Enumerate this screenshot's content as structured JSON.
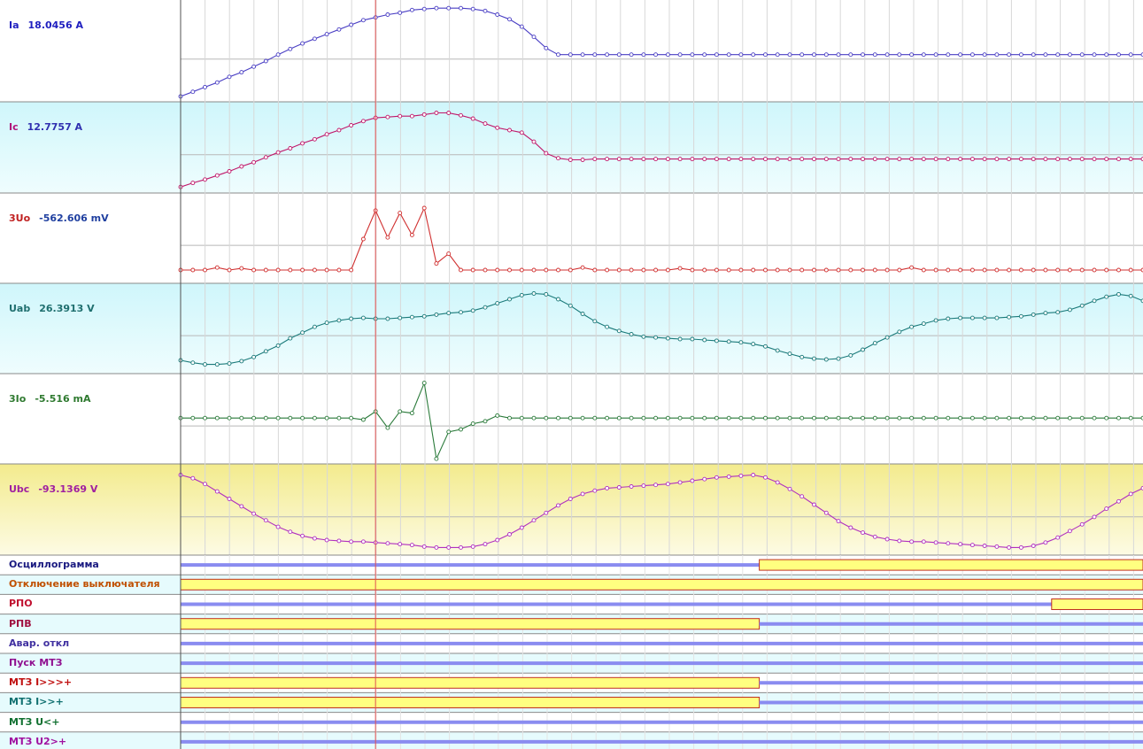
{
  "cursor_index": 16,
  "analog_channels": [
    {
      "name": "Ia",
      "readout": "18.0456 A",
      "color": "#2020c0",
      "line_color": "#4a3fc4",
      "bg": "white"
    },
    {
      "name": "Ic",
      "readout": "12.7757 A",
      "color": "#3030b0",
      "name_color": "#b0107a",
      "line_color": "#c0186a",
      "bg": "cyan"
    },
    {
      "name": "3Uo",
      "readout": "-562.606 mV",
      "color": "#2040a0",
      "name_color": "#c02020",
      "line_color": "#d03030",
      "bg": "white"
    },
    {
      "name": "Uab",
      "readout": "26.3913 V",
      "color": "#1f6f6f",
      "line_color": "#1a7a7a",
      "bg": "cyan"
    },
    {
      "name": "3Io",
      "readout": "-5.516  mA",
      "color": "#2f7a30",
      "line_color": "#2a7a3a",
      "bg": "white"
    },
    {
      "name": "Ubc",
      "readout": "-93.1369 V",
      "color": "#a020a0",
      "line_color": "#b030c0",
      "bg": "yellow"
    }
  ],
  "digital_channels": [
    {
      "name": "Осциллограмма",
      "color": "#1a1a80",
      "state": [
        0,
        0,
        0,
        0,
        0,
        0,
        0,
        0,
        0,
        0,
        0,
        0,
        0,
        0,
        0,
        0,
        0,
        0,
        0,
        0,
        0,
        0,
        0,
        0,
        0,
        0,
        0,
        0,
        0,
        0,
        0,
        0,
        0,
        0,
        0,
        0,
        0,
        0,
        0,
        0,
        0,
        0,
        0,
        0,
        0,
        0,
        0,
        0,
        1,
        1,
        1,
        1,
        1,
        1,
        1,
        1,
        1,
        1,
        1,
        1,
        1,
        1,
        1,
        1,
        1,
        1,
        1,
        1,
        1,
        1,
        1,
        1,
        1,
        1,
        1,
        1,
        1,
        1,
        1,
        1
      ]
    },
    {
      "name": "Отключение выключателя",
      "color": "#c05000",
      "state": [
        1,
        1,
        1,
        1,
        1,
        1,
        1,
        1,
        1,
        1,
        1,
        1,
        1,
        1,
        1,
        1,
        1,
        1,
        1,
        1,
        1,
        1,
        1,
        1,
        1,
        1,
        1,
        1,
        1,
        1,
        1,
        1,
        1,
        1,
        1,
        1,
        1,
        1,
        1,
        1,
        1,
        1,
        1,
        1,
        1,
        1,
        1,
        1,
        1,
        1,
        1,
        1,
        1,
        1,
        1,
        1,
        1,
        1,
        1,
        1,
        1,
        1,
        1,
        1,
        1,
        1,
        1,
        1,
        1,
        1,
        1,
        1,
        1,
        1,
        1,
        1,
        1,
        1,
        1,
        1
      ]
    },
    {
      "name": "РПО",
      "color": "#c01030",
      "state": [
        0,
        0,
        0,
        0,
        0,
        0,
        0,
        0,
        0,
        0,
        0,
        0,
        0,
        0,
        0,
        0,
        0,
        0,
        0,
        0,
        0,
        0,
        0,
        0,
        0,
        0,
        0,
        0,
        0,
        0,
        0,
        0,
        0,
        0,
        0,
        0,
        0,
        0,
        0,
        0,
        0,
        0,
        0,
        0,
        0,
        0,
        0,
        0,
        0,
        0,
        0,
        0,
        0,
        0,
        0,
        0,
        0,
        0,
        0,
        0,
        0,
        0,
        0,
        0,
        0,
        0,
        0,
        0,
        0,
        0,
        0,
        0,
        1,
        1,
        1,
        1,
        1,
        1,
        1,
        1
      ]
    },
    {
      "name": "РПВ",
      "color": "#a01040",
      "state": [
        1,
        1,
        1,
        1,
        1,
        1,
        1,
        1,
        1,
        1,
        1,
        1,
        1,
        1,
        1,
        1,
        1,
        1,
        1,
        1,
        1,
        1,
        1,
        1,
        1,
        1,
        1,
        1,
        1,
        1,
        1,
        1,
        1,
        1,
        1,
        1,
        1,
        1,
        1,
        1,
        1,
        1,
        1,
        1,
        1,
        1,
        1,
        1,
        0,
        0,
        0,
        0,
        0,
        0,
        0,
        0,
        0,
        0,
        0,
        0,
        0,
        0,
        0,
        0,
        0,
        0,
        0,
        0,
        0,
        0,
        0,
        0,
        0,
        0,
        0,
        0,
        0,
        0,
        0,
        0
      ]
    },
    {
      "name": "Авар. откл",
      "color": "#4030a0",
      "state": [
        0,
        0,
        0,
        0,
        0,
        0,
        0,
        0,
        0,
        0,
        0,
        0,
        0,
        0,
        0,
        0,
        0,
        0,
        0,
        0,
        0,
        0,
        0,
        0,
        0,
        0,
        0,
        0,
        0,
        0,
        0,
        0,
        0,
        0,
        0,
        0,
        0,
        0,
        0,
        0,
        0,
        0,
        0,
        0,
        0,
        0,
        0,
        0,
        0,
        0,
        0,
        0,
        0,
        0,
        0,
        0,
        0,
        0,
        0,
        0,
        0,
        0,
        0,
        0,
        0,
        0,
        0,
        0,
        0,
        0,
        0,
        0,
        0,
        0,
        0,
        0,
        0,
        0,
        0,
        0
      ]
    },
    {
      "name": "Пуск МТЗ",
      "color": "#901090",
      "state": [
        0,
        0,
        0,
        0,
        0,
        0,
        0,
        0,
        0,
        0,
        0,
        0,
        0,
        0,
        0,
        0,
        0,
        0,
        0,
        0,
        0,
        0,
        0,
        0,
        0,
        0,
        0,
        0,
        0,
        0,
        0,
        0,
        0,
        0,
        0,
        0,
        0,
        0,
        0,
        0,
        0,
        0,
        0,
        0,
        0,
        0,
        0,
        0,
        0,
        0,
        0,
        0,
        0,
        0,
        0,
        0,
        0,
        0,
        0,
        0,
        0,
        0,
        0,
        0,
        0,
        0,
        0,
        0,
        0,
        0,
        0,
        0,
        0,
        0,
        0,
        0,
        0,
        0,
        0,
        0
      ]
    },
    {
      "name": "МТЗ I>>>+",
      "color": "#c01010",
      "state": [
        1,
        1,
        1,
        1,
        1,
        1,
        1,
        1,
        1,
        1,
        1,
        1,
        1,
        1,
        1,
        1,
        1,
        1,
        1,
        1,
        1,
        1,
        1,
        1,
        1,
        1,
        1,
        1,
        1,
        1,
        1,
        1,
        1,
        1,
        1,
        1,
        1,
        1,
        1,
        1,
        1,
        1,
        1,
        1,
        1,
        1,
        1,
        1,
        0,
        0,
        0,
        0,
        0,
        0,
        0,
        0,
        0,
        0,
        0,
        0,
        0,
        0,
        0,
        0,
        0,
        0,
        0,
        0,
        0,
        0,
        0,
        0,
        0,
        0,
        0,
        0,
        0,
        0,
        0,
        0
      ]
    },
    {
      "name": "МТЗ I>>+",
      "color": "#107070",
      "state": [
        1,
        1,
        1,
        1,
        1,
        1,
        1,
        1,
        1,
        1,
        1,
        1,
        1,
        1,
        1,
        1,
        1,
        1,
        1,
        1,
        1,
        1,
        1,
        1,
        1,
        1,
        1,
        1,
        1,
        1,
        1,
        1,
        1,
        1,
        1,
        1,
        1,
        1,
        1,
        1,
        1,
        1,
        1,
        1,
        1,
        1,
        1,
        1,
        0,
        0,
        0,
        0,
        0,
        0,
        0,
        0,
        0,
        0,
        0,
        0,
        0,
        0,
        0,
        0,
        0,
        0,
        0,
        0,
        0,
        0,
        0,
        0,
        0,
        0,
        0,
        0,
        0,
        0,
        0,
        0
      ]
    },
    {
      "name": "МТЗ U<+",
      "color": "#107030",
      "state": [
        0,
        0,
        0,
        0,
        0,
        0,
        0,
        0,
        0,
        0,
        0,
        0,
        0,
        0,
        0,
        0,
        0,
        0,
        0,
        0,
        0,
        0,
        0,
        0,
        0,
        0,
        0,
        0,
        0,
        0,
        0,
        0,
        0,
        0,
        0,
        0,
        0,
        0,
        0,
        0,
        0,
        0,
        0,
        0,
        0,
        0,
        0,
        0,
        0,
        0,
        0,
        0,
        0,
        0,
        0,
        0,
        0,
        0,
        0,
        0,
        0,
        0,
        0,
        0,
        0,
        0,
        0,
        0,
        0,
        0,
        0,
        0,
        0,
        0,
        0,
        0,
        0,
        0,
        0,
        0
      ]
    },
    {
      "name": "МТЗ U2>+",
      "color": "#a010a0",
      "state": [
        0,
        0,
        0,
        0,
        0,
        0,
        0,
        0,
        0,
        0,
        0,
        0,
        0,
        0,
        0,
        0,
        0,
        0,
        0,
        0,
        0,
        0,
        0,
        0,
        0,
        0,
        0,
        0,
        0,
        0,
        0,
        0,
        0,
        0,
        0,
        0,
        0,
        0,
        0,
        0,
        0,
        0,
        0,
        0,
        0,
        0,
        0,
        0,
        0,
        0,
        0,
        0,
        0,
        0,
        0,
        0,
        0,
        0,
        0,
        0,
        0,
        0,
        0,
        0,
        0,
        0,
        0,
        0,
        0,
        0,
        0,
        0,
        0,
        0,
        0,
        0,
        0,
        0,
        0,
        0
      ]
    }
  ],
  "chart_data": {
    "type": "line",
    "title": "",
    "xlabel": "",
    "ylabel": "",
    "x_samples": 80,
    "grid": true,
    "series": [
      {
        "name": "Ia",
        "values": [
          0.02,
          0.07,
          0.12,
          0.17,
          0.23,
          0.28,
          0.34,
          0.4,
          0.47,
          0.53,
          0.59,
          0.64,
          0.69,
          0.74,
          0.79,
          0.84,
          0.87,
          0.9,
          0.92,
          0.95,
          0.96,
          0.97,
          0.97,
          0.97,
          0.96,
          0.94,
          0.9,
          0.85,
          0.77,
          0.66,
          0.54,
          0.47,
          0.47,
          0.47,
          0.47,
          0.47,
          0.47,
          0.47,
          0.47,
          0.47,
          0.47,
          0.47,
          0.47,
          0.47,
          0.47,
          0.47,
          0.47,
          0.47,
          0.47,
          0.47,
          0.47,
          0.47,
          0.47,
          0.47,
          0.47,
          0.47,
          0.47,
          0.47,
          0.47,
          0.47,
          0.47,
          0.47,
          0.47,
          0.47,
          0.47,
          0.47,
          0.47,
          0.47,
          0.47,
          0.47,
          0.47,
          0.47,
          0.47,
          0.47,
          0.47,
          0.47,
          0.47,
          0.47,
          0.47,
          0.47
        ]
      },
      {
        "name": "Ic",
        "values": [
          0.03,
          0.08,
          0.12,
          0.17,
          0.22,
          0.28,
          0.33,
          0.39,
          0.45,
          0.5,
          0.56,
          0.61,
          0.67,
          0.72,
          0.78,
          0.83,
          0.87,
          0.88,
          0.89,
          0.89,
          0.91,
          0.93,
          0.93,
          0.9,
          0.86,
          0.8,
          0.75,
          0.72,
          0.69,
          0.58,
          0.44,
          0.38,
          0.36,
          0.36,
          0.37,
          0.37,
          0.37,
          0.37,
          0.37,
          0.37,
          0.37,
          0.37,
          0.37,
          0.37,
          0.37,
          0.37,
          0.37,
          0.37,
          0.37,
          0.37,
          0.37,
          0.37,
          0.37,
          0.37,
          0.37,
          0.37,
          0.37,
          0.37,
          0.37,
          0.37,
          0.37,
          0.37,
          0.37,
          0.37,
          0.37,
          0.37,
          0.37,
          0.37,
          0.37,
          0.37,
          0.37,
          0.37,
          0.37,
          0.37,
          0.37,
          0.37,
          0.37,
          0.37,
          0.37,
          0.37
        ]
      },
      {
        "name": "3Uo",
        "values": [
          0.12,
          0.12,
          0.12,
          0.15,
          0.12,
          0.14,
          0.12,
          0.12,
          0.12,
          0.12,
          0.12,
          0.12,
          0.12,
          0.12,
          0.12,
          0.5,
          0.85,
          0.52,
          0.82,
          0.55,
          0.88,
          0.2,
          0.32,
          0.12,
          0.12,
          0.12,
          0.12,
          0.12,
          0.12,
          0.12,
          0.12,
          0.12,
          0.12,
          0.15,
          0.12,
          0.12,
          0.12,
          0.12,
          0.12,
          0.12,
          0.12,
          0.14,
          0.12,
          0.12,
          0.12,
          0.12,
          0.12,
          0.12,
          0.12,
          0.12,
          0.12,
          0.12,
          0.12,
          0.12,
          0.12,
          0.12,
          0.12,
          0.12,
          0.12,
          0.12,
          0.15,
          0.12,
          0.12,
          0.12,
          0.12,
          0.12,
          0.12,
          0.12,
          0.12,
          0.12,
          0.12,
          0.12,
          0.12,
          0.12,
          0.12,
          0.12,
          0.12,
          0.12,
          0.12,
          0.12
        ]
      },
      {
        "name": "Uab",
        "values": [
          0.12,
          0.09,
          0.07,
          0.07,
          0.08,
          0.11,
          0.16,
          0.23,
          0.3,
          0.39,
          0.46,
          0.53,
          0.58,
          0.61,
          0.63,
          0.64,
          0.63,
          0.63,
          0.64,
          0.65,
          0.66,
          0.68,
          0.7,
          0.71,
          0.73,
          0.77,
          0.82,
          0.87,
          0.92,
          0.94,
          0.93,
          0.87,
          0.79,
          0.69,
          0.6,
          0.53,
          0.48,
          0.44,
          0.41,
          0.4,
          0.39,
          0.38,
          0.38,
          0.37,
          0.36,
          0.35,
          0.34,
          0.32,
          0.29,
          0.24,
          0.2,
          0.16,
          0.14,
          0.13,
          0.14,
          0.18,
          0.25,
          0.33,
          0.4,
          0.47,
          0.53,
          0.57,
          0.61,
          0.63,
          0.64,
          0.64,
          0.64,
          0.64,
          0.65,
          0.66,
          0.68,
          0.7,
          0.71,
          0.74,
          0.79,
          0.85,
          0.9,
          0.93,
          0.91,
          0.85
        ]
      },
      {
        "name": "3Io",
        "values": [
          0.52,
          0.52,
          0.52,
          0.52,
          0.52,
          0.52,
          0.52,
          0.52,
          0.52,
          0.52,
          0.52,
          0.52,
          0.52,
          0.52,
          0.52,
          0.5,
          0.6,
          0.4,
          0.6,
          0.58,
          0.95,
          0.02,
          0.35,
          0.38,
          0.45,
          0.48,
          0.55,
          0.52,
          0.52,
          0.52,
          0.52,
          0.52,
          0.52,
          0.52,
          0.52,
          0.52,
          0.52,
          0.52,
          0.52,
          0.52,
          0.52,
          0.52,
          0.52,
          0.52,
          0.52,
          0.52,
          0.52,
          0.52,
          0.52,
          0.52,
          0.52,
          0.52,
          0.52,
          0.52,
          0.52,
          0.52,
          0.52,
          0.52,
          0.52,
          0.52,
          0.52,
          0.52,
          0.52,
          0.52,
          0.52,
          0.52,
          0.52,
          0.52,
          0.52,
          0.52,
          0.52,
          0.52,
          0.52,
          0.52,
          0.52,
          0.52,
          0.52,
          0.52,
          0.52,
          0.52
        ]
      },
      {
        "name": "Ubc",
        "values": [
          0.93,
          0.89,
          0.82,
          0.73,
          0.64,
          0.55,
          0.46,
          0.38,
          0.3,
          0.24,
          0.19,
          0.16,
          0.14,
          0.13,
          0.12,
          0.12,
          0.11,
          0.1,
          0.09,
          0.08,
          0.06,
          0.05,
          0.05,
          0.05,
          0.06,
          0.09,
          0.14,
          0.21,
          0.29,
          0.38,
          0.47,
          0.56,
          0.64,
          0.7,
          0.74,
          0.77,
          0.78,
          0.79,
          0.8,
          0.81,
          0.82,
          0.84,
          0.86,
          0.88,
          0.9,
          0.91,
          0.92,
          0.93,
          0.9,
          0.84,
          0.76,
          0.67,
          0.57,
          0.47,
          0.37,
          0.29,
          0.23,
          0.18,
          0.15,
          0.13,
          0.12,
          0.12,
          0.11,
          0.1,
          0.09,
          0.08,
          0.07,
          0.06,
          0.05,
          0.05,
          0.07,
          0.11,
          0.17,
          0.25,
          0.33,
          0.42,
          0.52,
          0.61,
          0.7,
          0.77
        ]
      }
    ]
  }
}
